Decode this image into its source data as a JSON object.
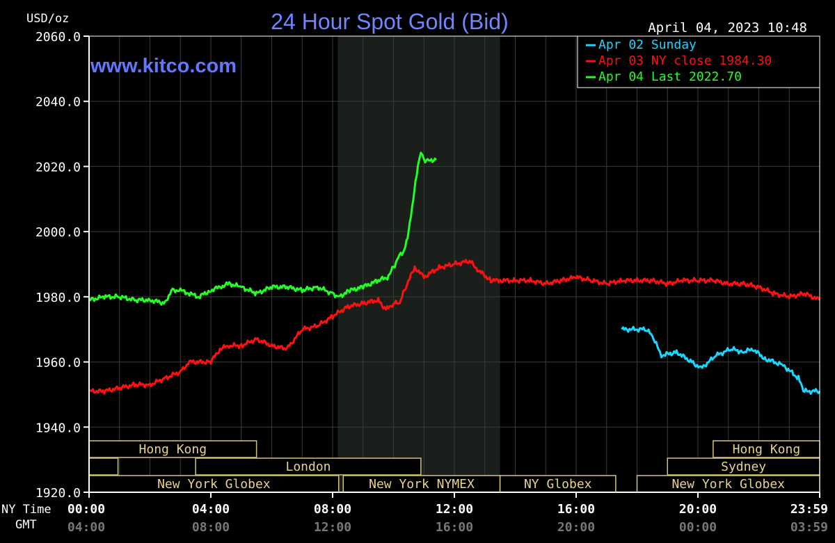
{
  "chart_data": {
    "type": "line",
    "title": "24 Hour Spot Gold (Bid)",
    "unit_label": "USD/oz",
    "datetime": "April 04, 2023 10:48",
    "watermark": "www.kitco.com",
    "ylim": [
      1920,
      2060
    ],
    "xlim": [
      0,
      24
    ],
    "y_ticks": [
      "1920.0",
      "1940.0",
      "1960.0",
      "1980.0",
      "2000.0",
      "2020.0",
      "2040.0",
      "2060.0"
    ],
    "x_row_label_ny": "NY Time",
    "x_row_label_gmt": "GMT",
    "x_ticks_ny": [
      "00:00",
      "04:00",
      "08:00",
      "12:00",
      "16:00",
      "20:00",
      "23:59"
    ],
    "x_ticks_gmt": [
      "04:00",
      "08:00",
      "12:00",
      "16:00",
      "20:00",
      "00:00",
      "03:59"
    ],
    "grid": true,
    "legend_position": "top-right",
    "colors": {
      "background": "#000000",
      "grid": "#3a3a3a",
      "axis": "#ffffff",
      "title": "#6f86ff",
      "watermark": "#5f78ff",
      "shade": "#1b1f1b",
      "session_fill": "#000000",
      "session_border": "#d8c27a",
      "session_text": "#e6d38d"
    },
    "highlight_range": [
      8.17,
      13.5
    ],
    "series": [
      {
        "name": "Apr 02 Sunday",
        "color": "#19d7ff",
        "points": [
          [
            17.5,
            1970
          ],
          [
            18.3,
            1970
          ],
          [
            18.5,
            1968
          ],
          [
            18.8,
            1962
          ],
          [
            19.3,
            1963
          ],
          [
            19.8,
            1960
          ],
          [
            20.1,
            1958
          ],
          [
            20.6,
            1962
          ],
          [
            21.1,
            1964
          ],
          [
            21.5,
            1963
          ],
          [
            21.8,
            1964
          ],
          [
            22.2,
            1961
          ],
          [
            22.8,
            1959
          ],
          [
            23.3,
            1955
          ],
          [
            23.5,
            1951
          ],
          [
            24,
            1951
          ]
        ]
      },
      {
        "name": "Apr 03 NY close 1984.30",
        "color": "#ff1010",
        "points": [
          [
            0,
            1951
          ],
          [
            0.5,
            1951
          ],
          [
            1,
            1952
          ],
          [
            1.5,
            1953
          ],
          [
            2,
            1953
          ],
          [
            2.5,
            1955
          ],
          [
            3,
            1957
          ],
          [
            3.3,
            1960
          ],
          [
            4,
            1960
          ],
          [
            4.3,
            1964
          ],
          [
            4.6,
            1965
          ],
          [
            5,
            1965
          ],
          [
            5.5,
            1967
          ],
          [
            6,
            1965
          ],
          [
            6.5,
            1964
          ],
          [
            7,
            1970
          ],
          [
            7.5,
            1971
          ],
          [
            8,
            1974
          ],
          [
            8.5,
            1977
          ],
          [
            9,
            1978
          ],
          [
            9.5,
            1979
          ],
          [
            9.75,
            1976
          ],
          [
            10,
            1978
          ],
          [
            10.2,
            1978
          ],
          [
            10.4,
            1983
          ],
          [
            10.7,
            1989
          ],
          [
            11,
            1986
          ],
          [
            11.5,
            1989
          ],
          [
            12,
            1990
          ],
          [
            12.5,
            1991
          ],
          [
            12.8,
            1988
          ],
          [
            13.2,
            1985
          ],
          [
            13.5,
            1985
          ],
          [
            14,
            1985
          ],
          [
            14.5,
            1985
          ],
          [
            15,
            1984
          ],
          [
            15.5,
            1985
          ],
          [
            16,
            1986
          ],
          [
            16.5,
            1985
          ],
          [
            17,
            1984
          ],
          [
            17.5,
            1985
          ],
          [
            18,
            1985
          ],
          [
            18.5,
            1985
          ],
          [
            19,
            1984
          ],
          [
            19.5,
            1985
          ],
          [
            20,
            1985
          ],
          [
            20.5,
            1985
          ],
          [
            21,
            1984
          ],
          [
            21.5,
            1984
          ],
          [
            22,
            1983
          ],
          [
            22.5,
            1981
          ],
          [
            23,
            1980
          ],
          [
            23.5,
            1981
          ],
          [
            24,
            1979
          ]
        ]
      },
      {
        "name": "Apr 04 Last 2022.70",
        "color": "#22ff22",
        "points": [
          [
            0,
            1979
          ],
          [
            0.5,
            1980
          ],
          [
            1,
            1980
          ],
          [
            1.5,
            1979
          ],
          [
            2,
            1979
          ],
          [
            2.5,
            1978
          ],
          [
            2.7,
            1982
          ],
          [
            3,
            1982
          ],
          [
            3.3,
            1981
          ],
          [
            3.6,
            1980
          ],
          [
            4,
            1982
          ],
          [
            4.3,
            1983
          ],
          [
            4.6,
            1984
          ],
          [
            5,
            1983
          ],
          [
            5.5,
            1981
          ],
          [
            6,
            1983
          ],
          [
            6.5,
            1983
          ],
          [
            7,
            1982
          ],
          [
            7.5,
            1983
          ],
          [
            8,
            1981
          ],
          [
            8.2,
            1980
          ],
          [
            8.6,
            1982
          ],
          [
            9,
            1983
          ],
          [
            9.5,
            1985
          ],
          [
            9.8,
            1986
          ],
          [
            10,
            1989
          ],
          [
            10.2,
            1993
          ],
          [
            10.35,
            1994
          ],
          [
            10.5,
            2000
          ],
          [
            10.65,
            2010
          ],
          [
            10.8,
            2020
          ],
          [
            10.9,
            2025
          ],
          [
            11.0,
            2022
          ],
          [
            11.2,
            2022
          ],
          [
            11.4,
            2022
          ]
        ]
      }
    ],
    "sessions": [
      {
        "label": "Hong Kong",
        "row": 0,
        "start": 0,
        "end": 5.5
      },
      {
        "label": "",
        "row": 1,
        "start": 0,
        "end": 0.95
      },
      {
        "label": "London",
        "row": 1,
        "start": 3.5,
        "end": 10.9
      },
      {
        "label": "New York Globex",
        "row": 2,
        "start": 0,
        "end": 8.2
      },
      {
        "label": "New York NYMEX",
        "row": 2,
        "start": 8.35,
        "end": 13.5
      },
      {
        "label": "NY Globex",
        "row": 2,
        "start": 13.5,
        "end": 17.3
      },
      {
        "label": "Hong Kong",
        "row": 0,
        "start": 20.5,
        "end": 24
      },
      {
        "label": "Sydney",
        "row": 1,
        "start": 19.0,
        "end": 24
      },
      {
        "label": "New York Globex",
        "row": 2,
        "start": 18.0,
        "end": 24
      }
    ]
  }
}
